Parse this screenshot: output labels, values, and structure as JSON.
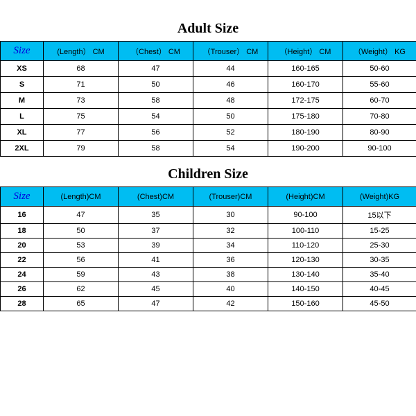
{
  "adult": {
    "title": "Adult Size",
    "columns": [
      "Size",
      "(Length） CM",
      "（Chest） CM",
      "（Trouser） CM",
      "（Height） CM",
      "（Weight） KG"
    ],
    "rows": [
      [
        "XS",
        "68",
        "47",
        "44",
        "160-165",
        "50-60"
      ],
      [
        "S",
        "71",
        "50",
        "46",
        "160-170",
        "55-60"
      ],
      [
        "M",
        "73",
        "58",
        "48",
        "172-175",
        "60-70"
      ],
      [
        "L",
        "75",
        "54",
        "50",
        "175-180",
        "70-80"
      ],
      [
        "XL",
        "77",
        "56",
        "52",
        "180-190",
        "80-90"
      ],
      [
        "2XL",
        "79",
        "58",
        "54",
        "190-200",
        "90-100"
      ]
    ]
  },
  "children": {
    "title": "Children Size",
    "columns": [
      "Size",
      "(Length)CM",
      "(Chest)CM",
      "(Trouser)CM",
      "(Height)CM",
      "(Weight)KG"
    ],
    "rows": [
      [
        "16",
        "47",
        "35",
        "30",
        "90-100",
        "15以下"
      ],
      [
        "18",
        "50",
        "37",
        "32",
        "100-110",
        "15-25"
      ],
      [
        "20",
        "53",
        "39",
        "34",
        "110-120",
        "25-30"
      ],
      [
        "22",
        "56",
        "41",
        "36",
        "120-130",
        "30-35"
      ],
      [
        "24",
        "59",
        "43",
        "38",
        "130-140",
        "35-40"
      ],
      [
        "26",
        "62",
        "45",
        "40",
        "140-150",
        "40-45"
      ],
      [
        "28",
        "65",
        "47",
        "42",
        "150-160",
        "45-50"
      ]
    ]
  },
  "style": {
    "header_bg": "#00bdf2",
    "border_color": "#000000",
    "title_fontsize": 20,
    "cell_fontsize": 11
  }
}
